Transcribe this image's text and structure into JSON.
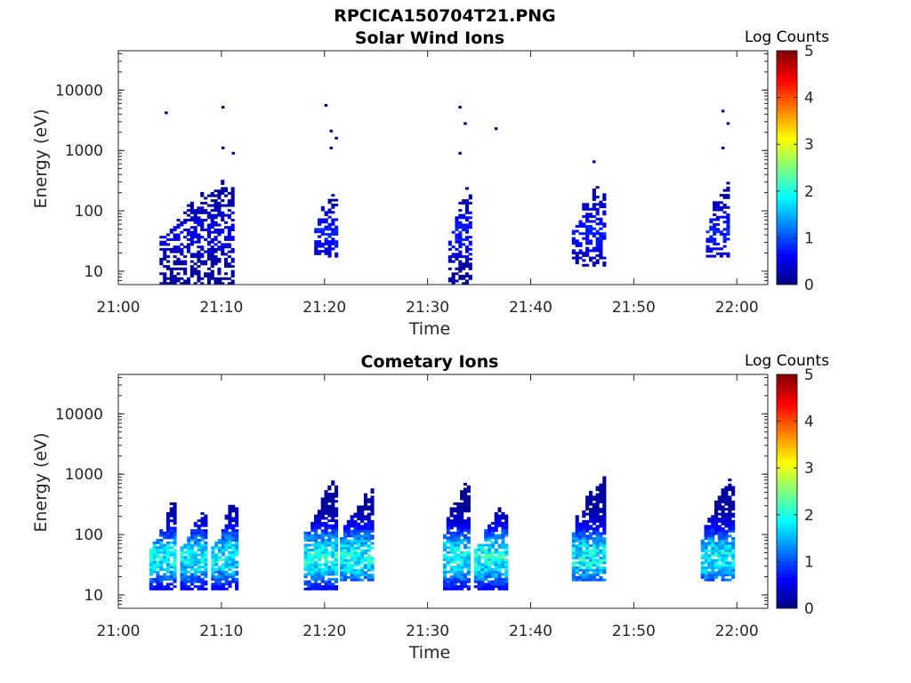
{
  "figure_title": "RPCICA150704T21.PNG",
  "colorbar": {
    "label": "Log Counts",
    "ticks": [
      "0",
      "1",
      "2",
      "3",
      "4",
      "5"
    ],
    "colormap": [
      "#00007f",
      "#0000ff",
      "#007fff",
      "#00ffff",
      "#7fff7f",
      "#ffff00",
      "#ff7f00",
      "#ff0000",
      "#7f0000"
    ]
  },
  "chart_data": [
    {
      "type": "heatmap",
      "title": "Solar Wind Ions",
      "xlabel": "Time",
      "ylabel": "Energy (eV)",
      "x_ticks": [
        "21:00",
        "21:10",
        "21:20",
        "21:30",
        "21:40",
        "21:50",
        "22:00"
      ],
      "x_tick_minutes": [
        0,
        10,
        20,
        30,
        40,
        50,
        60
      ],
      "xlim_minutes": [
        0,
        63
      ],
      "y_ticks": [
        "10",
        "100",
        "1000",
        "10000"
      ],
      "y_tick_values": [
        10,
        100,
        1000,
        10000
      ],
      "ylim": [
        6,
        45000
      ],
      "yscale": "log",
      "zlim": [
        0,
        5
      ],
      "bursts": [
        {
          "start": "21:04",
          "end": "21:11",
          "emin": 6,
          "emax": 330,
          "log_counts_peak": 0.6
        },
        {
          "start": "21:19",
          "end": "21:21",
          "emin": 17,
          "emax": 300,
          "log_counts_peak": 0.9
        },
        {
          "start": "21:32",
          "end": "21:34",
          "emin": 6,
          "emax": 300,
          "log_counts_peak": 0.9
        },
        {
          "start": "21:44",
          "end": "21:47",
          "emin": 12,
          "emax": 300,
          "log_counts_peak": 0.9
        },
        {
          "start": "21:57",
          "end": "21:59",
          "emin": 17,
          "emax": 300,
          "log_counts_peak": 0.9
        }
      ],
      "sparse_hits": [
        {
          "time": "21:04.5",
          "energy": 4200
        },
        {
          "time": "21:10",
          "energy": 5200
        },
        {
          "time": "21:20",
          "energy": 5600
        },
        {
          "time": "21:20.5",
          "energy": 2100
        },
        {
          "time": "21:21",
          "energy": 1600
        },
        {
          "time": "21:33",
          "energy": 5200
        },
        {
          "time": "21:33.5",
          "energy": 2800
        },
        {
          "time": "21:36.5",
          "energy": 2300
        },
        {
          "time": "21:58.5",
          "energy": 4500
        },
        {
          "time": "21:59",
          "energy": 2800
        },
        {
          "time": "21:10",
          "energy": 1100
        },
        {
          "time": "21:11",
          "energy": 900
        },
        {
          "time": "21:20.5",
          "energy": 1100
        },
        {
          "time": "21:33",
          "energy": 900
        },
        {
          "time": "21:58.5",
          "energy": 1100
        },
        {
          "time": "21:46",
          "energy": 650
        }
      ]
    },
    {
      "type": "heatmap",
      "title": "Cometary Ions",
      "xlabel": "Time",
      "ylabel": "Energy (eV)",
      "x_ticks": [
        "21:00",
        "21:10",
        "21:20",
        "21:30",
        "21:40",
        "21:50",
        "22:00"
      ],
      "x_tick_minutes": [
        0,
        10,
        20,
        30,
        40,
        50,
        60
      ],
      "xlim_minutes": [
        0,
        63
      ],
      "y_ticks": [
        "10",
        "100",
        "1000",
        "10000"
      ],
      "y_tick_values": [
        10,
        100,
        1000,
        10000
      ],
      "ylim": [
        6,
        45000
      ],
      "yscale": "log",
      "zlim": [
        0,
        5
      ],
      "bursts": [
        {
          "start": "21:03",
          "end": "21:05.5",
          "emin": 12,
          "emax": 350,
          "log_counts_peak": 2.2
        },
        {
          "start": "21:06",
          "end": "21:08.5",
          "emin": 12,
          "emax": 350,
          "log_counts_peak": 2.2
        },
        {
          "start": "21:09",
          "end": "21:11.5",
          "emin": 12,
          "emax": 400,
          "log_counts_peak": 2.2
        },
        {
          "start": "21:18",
          "end": "21:21",
          "emin": 12,
          "emax": 750,
          "log_counts_peak": 2.4
        },
        {
          "start": "21:21.5",
          "end": "21:24.5",
          "emin": 17,
          "emax": 650,
          "log_counts_peak": 2.4
        },
        {
          "start": "21:31.5",
          "end": "21:34",
          "emin": 12,
          "emax": 1000,
          "log_counts_peak": 2.3
        },
        {
          "start": "21:34.5",
          "end": "21:37.5",
          "emin": 12,
          "emax": 350,
          "log_counts_peak": 2.4
        },
        {
          "start": "21:44",
          "end": "21:47",
          "emin": 17,
          "emax": 1000,
          "log_counts_peak": 2.3
        },
        {
          "start": "21:56.5",
          "end": "21:59.5",
          "emin": 17,
          "emax": 800,
          "log_counts_peak": 2.3
        }
      ]
    }
  ]
}
